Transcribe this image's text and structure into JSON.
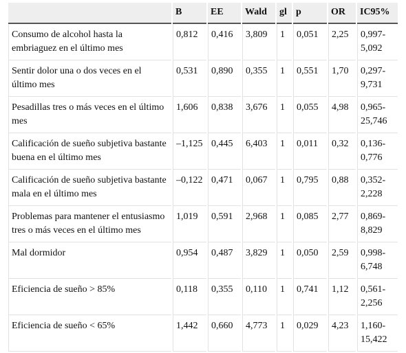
{
  "table": {
    "header": [
      "B",
      "EE",
      "Wald",
      "gl",
      "p",
      "OR",
      "IC95%"
    ],
    "rows": [
      [
        "Consumo de alcohol hasta la embriaguez en el último mes",
        "0,812",
        "0,416",
        "3,809",
        "1",
        "0,051",
        "2,25",
        "0,997-5,092"
      ],
      [
        "Sentir dolor una o dos veces en el último mes",
        "0,531",
        "0,890",
        "0,355",
        "1",
        "0,551",
        "1,70",
        "0,297-9,731"
      ],
      [
        "Pesadillas tres o más veces en el último mes",
        "1,606",
        "0,838",
        "3,676",
        "1",
        "0,055",
        "4,98",
        "0,965-25,746"
      ],
      [
        "Calificación de sueño subjetiva bastante buena en el último mes",
        "–1,125",
        "0,445",
        "6,403",
        "1",
        "0,011",
        "0,32",
        "0,136-0,776"
      ],
      [
        "Calificación de sueño subjetiva bastante mala en el último mes",
        "–0,122",
        "0,471",
        "0,067",
        "1",
        "0,795",
        "0,88",
        "0,352-2,228"
      ],
      [
        "Problemas para mantener el entusiasmo tres o más veces en el último mes",
        "1,019",
        "0,591",
        "2,968",
        "1",
        "0,085",
        "2,77",
        "0,869-8,829"
      ],
      [
        "Mal dormidor",
        "0,954",
        "0,487",
        "3,829",
        "1",
        "0,050",
        "2,59",
        "0,998-6,748"
      ],
      [
        "Eficiencia de sueño > 85%",
        "0,118",
        "0,355",
        "0,110",
        "1",
        "0,741",
        "1,12",
        "0,561-2,256"
      ],
      [
        "Eficiencia de sueño < 65%",
        "1,442",
        "0,660",
        "4,773",
        "1",
        "0,029",
        "4,23",
        "1,160-15,422"
      ]
    ]
  }
}
